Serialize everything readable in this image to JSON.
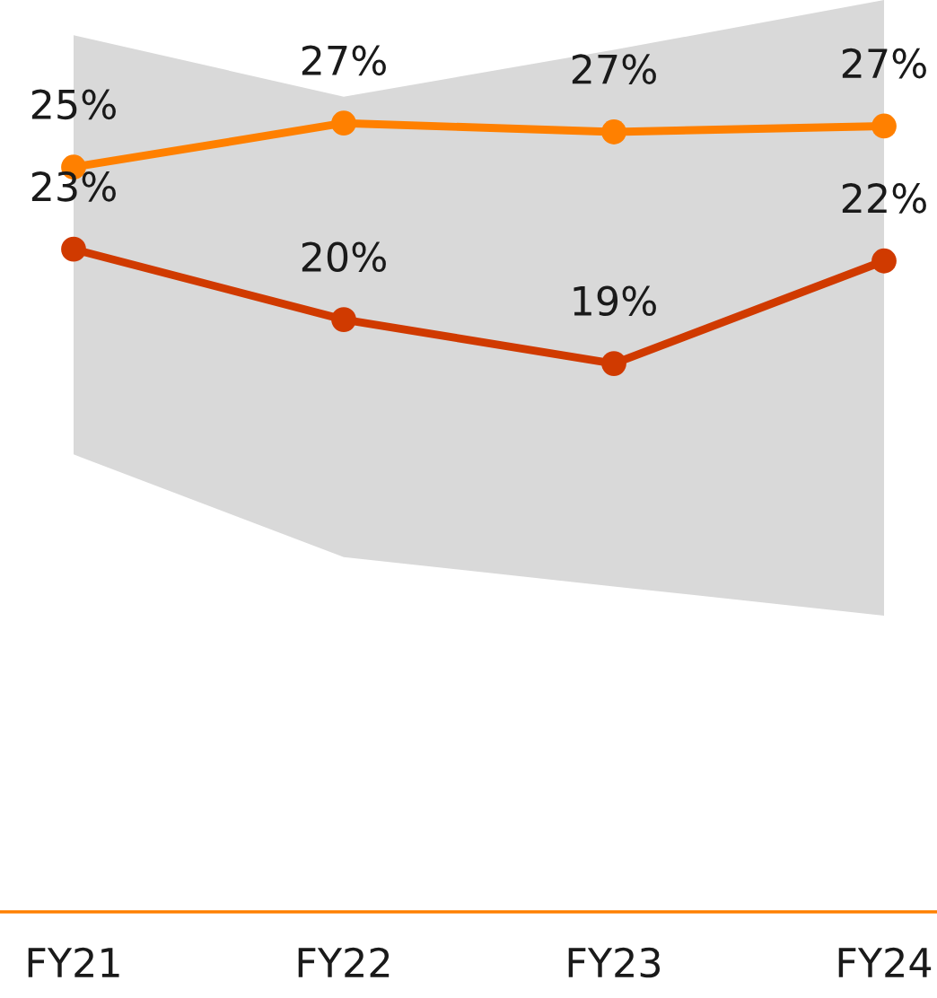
{
  "chart_data": {
    "type": "line",
    "categories": [
      "FY21",
      "FY22",
      "FY23",
      "FY24"
    ],
    "marker": "circle",
    "line_style": "solid",
    "grid": false,
    "series": [
      {
        "type": "area",
        "color": "#d9d9d9",
        "values": [
          null,
          null,
          null,
          null
        ],
        "lower": [
          15.6,
          12.1,
          11.1,
          10.1
        ],
        "upper": [
          29.9,
          27.8,
          29.4,
          31.1
        ]
      },
      {
        "color": "#ff8000",
        "values": [
          25.4,
          26.9,
          26.6,
          26.8
        ],
        "value_labels": [
          "25%",
          "27%",
          "27%",
          "27%"
        ]
      },
      {
        "color": "#d03a00",
        "values": [
          22.6,
          20.2,
          18.7,
          22.2
        ],
        "value_labels": [
          "23%",
          "20%",
          "19%",
          "22%"
        ]
      }
    ]
  }
}
